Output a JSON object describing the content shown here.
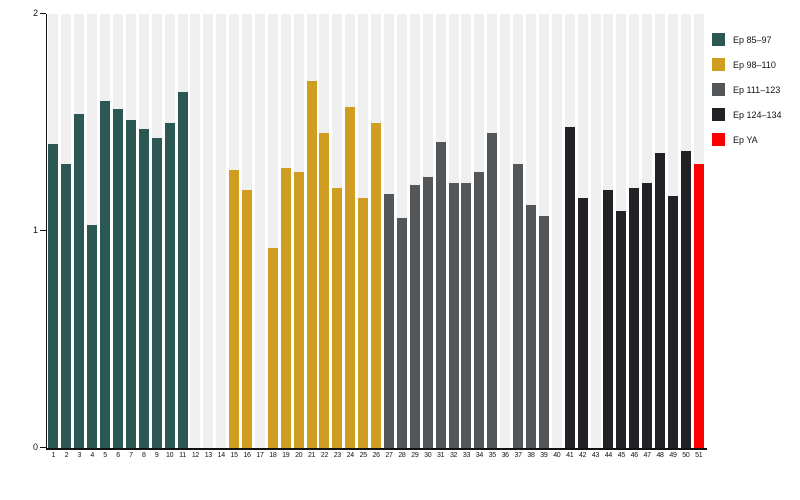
{
  "chart_data": {
    "type": "bar",
    "title": "",
    "xlabel": "",
    "ylabel": "",
    "ylim": [
      0,
      2
    ],
    "yticks": [
      0,
      1,
      2
    ],
    "grid": false,
    "legend_position": "top-right",
    "column_stripe_color": "#efefef",
    "legend": [
      {
        "label": "Ep 85–97",
        "color": "#2b5755"
      },
      {
        "label": "Ep 98–110",
        "color": "#cf9e20"
      },
      {
        "label": "Ep 111–123",
        "color": "#54575a"
      },
      {
        "label": "Ep 124–134",
        "color": "#202225"
      },
      {
        "label": "Ep YA",
        "color": "#fb0000"
      }
    ],
    "bars": [
      {
        "x": 1,
        "value": 1.4,
        "group": 0
      },
      {
        "x": 2,
        "value": 1.31,
        "group": 0
      },
      {
        "x": 3,
        "value": 1.54,
        "group": 0
      },
      {
        "x": 4,
        "value": 1.03,
        "group": 0
      },
      {
        "x": 5,
        "value": 1.6,
        "group": 0
      },
      {
        "x": 6,
        "value": 1.56,
        "group": 0
      },
      {
        "x": 7,
        "value": 1.51,
        "group": 0
      },
      {
        "x": 8,
        "value": 1.47,
        "group": 0
      },
      {
        "x": 9,
        "value": 1.43,
        "group": 0
      },
      {
        "x": 10,
        "value": 1.5,
        "group": 0
      },
      {
        "x": 11,
        "value": 1.64,
        "group": 0
      },
      {
        "x": 12,
        "value": null,
        "group": null
      },
      {
        "x": 13,
        "value": null,
        "group": null
      },
      {
        "x": 14,
        "value": null,
        "group": null
      },
      {
        "x": 15,
        "value": 1.28,
        "group": 1
      },
      {
        "x": 16,
        "value": 1.19,
        "group": 1
      },
      {
        "x": 17,
        "value": null,
        "group": null
      },
      {
        "x": 18,
        "value": 0.92,
        "group": 1
      },
      {
        "x": 19,
        "value": 1.29,
        "group": 1
      },
      {
        "x": 20,
        "value": 1.27,
        "group": 1
      },
      {
        "x": 21,
        "value": 1.69,
        "group": 1
      },
      {
        "x": 22,
        "value": 1.45,
        "group": 1
      },
      {
        "x": 23,
        "value": 1.2,
        "group": 1
      },
      {
        "x": 24,
        "value": 1.57,
        "group": 1
      },
      {
        "x": 25,
        "value": 1.15,
        "group": 1
      },
      {
        "x": 26,
        "value": 1.5,
        "group": 1
      },
      {
        "x": 27,
        "value": 1.17,
        "group": 2
      },
      {
        "x": 28,
        "value": 1.06,
        "group": 2
      },
      {
        "x": 29,
        "value": 1.21,
        "group": 2
      },
      {
        "x": 30,
        "value": 1.25,
        "group": 2
      },
      {
        "x": 31,
        "value": 1.41,
        "group": 2
      },
      {
        "x": 32,
        "value": 1.22,
        "group": 2
      },
      {
        "x": 33,
        "value": 1.22,
        "group": 2
      },
      {
        "x": 34,
        "value": 1.27,
        "group": 2
      },
      {
        "x": 35,
        "value": 1.45,
        "group": 2
      },
      {
        "x": 36,
        "value": null,
        "group": null
      },
      {
        "x": 37,
        "value": 1.31,
        "group": 2
      },
      {
        "x": 38,
        "value": 1.12,
        "group": 2
      },
      {
        "x": 39,
        "value": 1.07,
        "group": 2
      },
      {
        "x": 40,
        "value": null,
        "group": null
      },
      {
        "x": 41,
        "value": 1.48,
        "group": 3
      },
      {
        "x": 42,
        "value": 1.15,
        "group": 3
      },
      {
        "x": 43,
        "value": null,
        "group": null
      },
      {
        "x": 44,
        "value": 1.19,
        "group": 3
      },
      {
        "x": 45,
        "value": 1.09,
        "group": 3
      },
      {
        "x": 46,
        "value": 1.2,
        "group": 3
      },
      {
        "x": 47,
        "value": 1.22,
        "group": 3
      },
      {
        "x": 48,
        "value": 1.36,
        "group": 3
      },
      {
        "x": 49,
        "value": 1.16,
        "group": 3
      },
      {
        "x": 50,
        "value": 1.37,
        "group": 3
      },
      {
        "x": 51,
        "value": 1.31,
        "group": 4
      }
    ]
  }
}
